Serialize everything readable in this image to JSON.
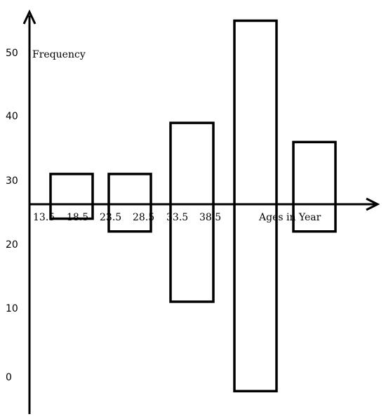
{
  "chart_data": {
    "type": "bar",
    "ylabel": "Frequency",
    "xlabel": "Ages in Year",
    "ylim": [
      -5,
      55
    ],
    "y_ticks": [
      "50",
      "40",
      "30",
      "20",
      "10",
      "0"
    ],
    "x_tick_labels": [
      "13.5",
      "18.5",
      "23.5",
      "28.5",
      "33.5",
      "38.5"
    ],
    "bars": [
      {
        "top": 31,
        "bottom": 24
      },
      {
        "top": 31,
        "bottom": 22
      },
      {
        "top": 39,
        "bottom": 11
      },
      {
        "top": 55,
        "bottom": -3
      },
      {
        "top": 36,
        "bottom": 22
      }
    ]
  }
}
